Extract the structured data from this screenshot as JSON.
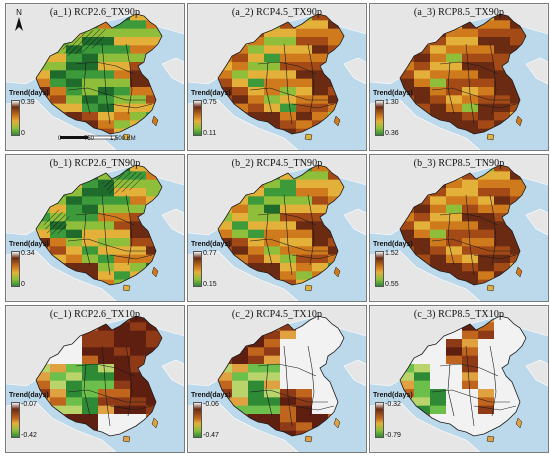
{
  "legend_title": "Trend(days)",
  "panels": [
    {
      "id": "a_1",
      "title": "(a_1) RCP2.6_TX90p",
      "max": "0.39",
      "min": "0",
      "scheme": "warm",
      "hatch": "north",
      "pattern": "a"
    },
    {
      "id": "a_2",
      "title": "(a_2) RCP4.5_TX90p",
      "max": "0.75",
      "min": "0.11",
      "scheme": "warm",
      "hatch": "",
      "pattern": "b"
    },
    {
      "id": "a_3",
      "title": "(a_3) RCP8.5_TX90p",
      "max": "1.30",
      "min": "0.36",
      "scheme": "warm",
      "hatch": "",
      "pattern": "c"
    },
    {
      "id": "b_1",
      "title": "(b_1) RCP2.6_TN90p",
      "max": "0.34",
      "min": "0",
      "scheme": "warm",
      "hatch": "west-east",
      "pattern": "d"
    },
    {
      "id": "b_2",
      "title": "(b_2) RCP4.5_TN90p",
      "max": "0.77",
      "min": "0.15",
      "scheme": "warm",
      "hatch": "",
      "pattern": "e"
    },
    {
      "id": "b_3",
      "title": "(b_3) RCP8.5_TN90p",
      "max": "1.52",
      "min": "0.55",
      "scheme": "warm",
      "hatch": "",
      "pattern": "f"
    },
    {
      "id": "c_1",
      "title": "(c_1) RCP2.6_TX10p",
      "max": "-0.07",
      "min": "-0.42",
      "scheme": "cold",
      "hatch": "",
      "pattern": "g"
    },
    {
      "id": "c_2",
      "title": "(c_2) RCP4.5_TX10p",
      "max": "-0.06",
      "min": "-0.47",
      "scheme": "cold",
      "hatch": "",
      "pattern": "h"
    },
    {
      "id": "c_3",
      "title": "(c_3) RCP8.5_TX10p",
      "max": "-0.32",
      "min": "-0.79",
      "scheme": "cold",
      "hatch": "",
      "pattern": "i"
    }
  ],
  "north_label": "N",
  "scale": {
    "ticks": [
      "0",
      "750",
      "1,500 KM"
    ]
  },
  "colors": {
    "ocean": "#bcd9ec",
    "land_bg": "#e6e6e6",
    "ramp": [
      "#6b2b12",
      "#a34a16",
      "#cf7a1c",
      "#e3b03a",
      "#8fbf3a",
      "#3d9a3a",
      "#1f6b2c"
    ],
    "light": "#f2f2f2"
  }
}
